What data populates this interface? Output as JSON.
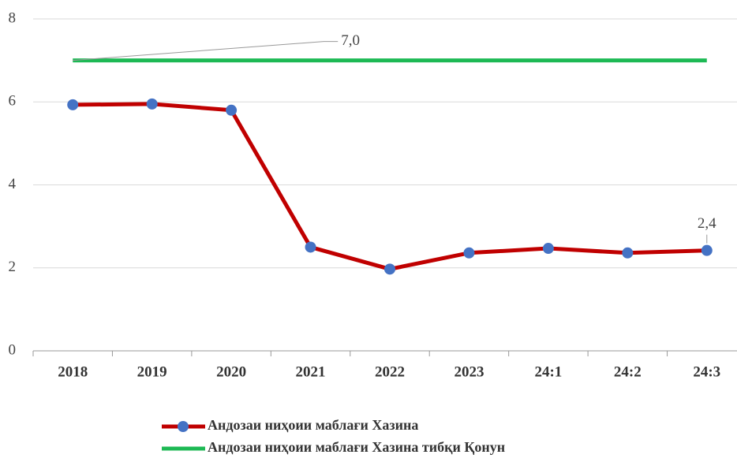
{
  "chart_data": {
    "type": "line",
    "categories": [
      "2018",
      "2019",
      "2020",
      "2021",
      "2022",
      "2023",
      "24:1",
      "24:2",
      "24:3"
    ],
    "series": [
      {
        "name": "Андозаи ниҳоии маблағи Хазина",
        "color": "#c00000",
        "marker_color": "#4472c4",
        "values": [
          5.93,
          5.95,
          5.8,
          2.5,
          1.97,
          2.36,
          2.47,
          2.36,
          2.42
        ],
        "value_labels": [
          null,
          null,
          null,
          null,
          null,
          null,
          null,
          null,
          "2,4"
        ]
      },
      {
        "name": "Андозаи ниҳоии маблағи Хазина тибқи Қонун",
        "color": "#1db954",
        "values": [
          7,
          7,
          7,
          7,
          7,
          7,
          7,
          7,
          7
        ],
        "value_labels": [
          "7,0",
          null,
          null,
          null,
          null,
          null,
          null,
          null,
          null
        ]
      }
    ],
    "ylim": [
      0,
      8
    ],
    "yticks": [
      0,
      2,
      4,
      6,
      8
    ],
    "grid": true,
    "legend": "bottom"
  }
}
